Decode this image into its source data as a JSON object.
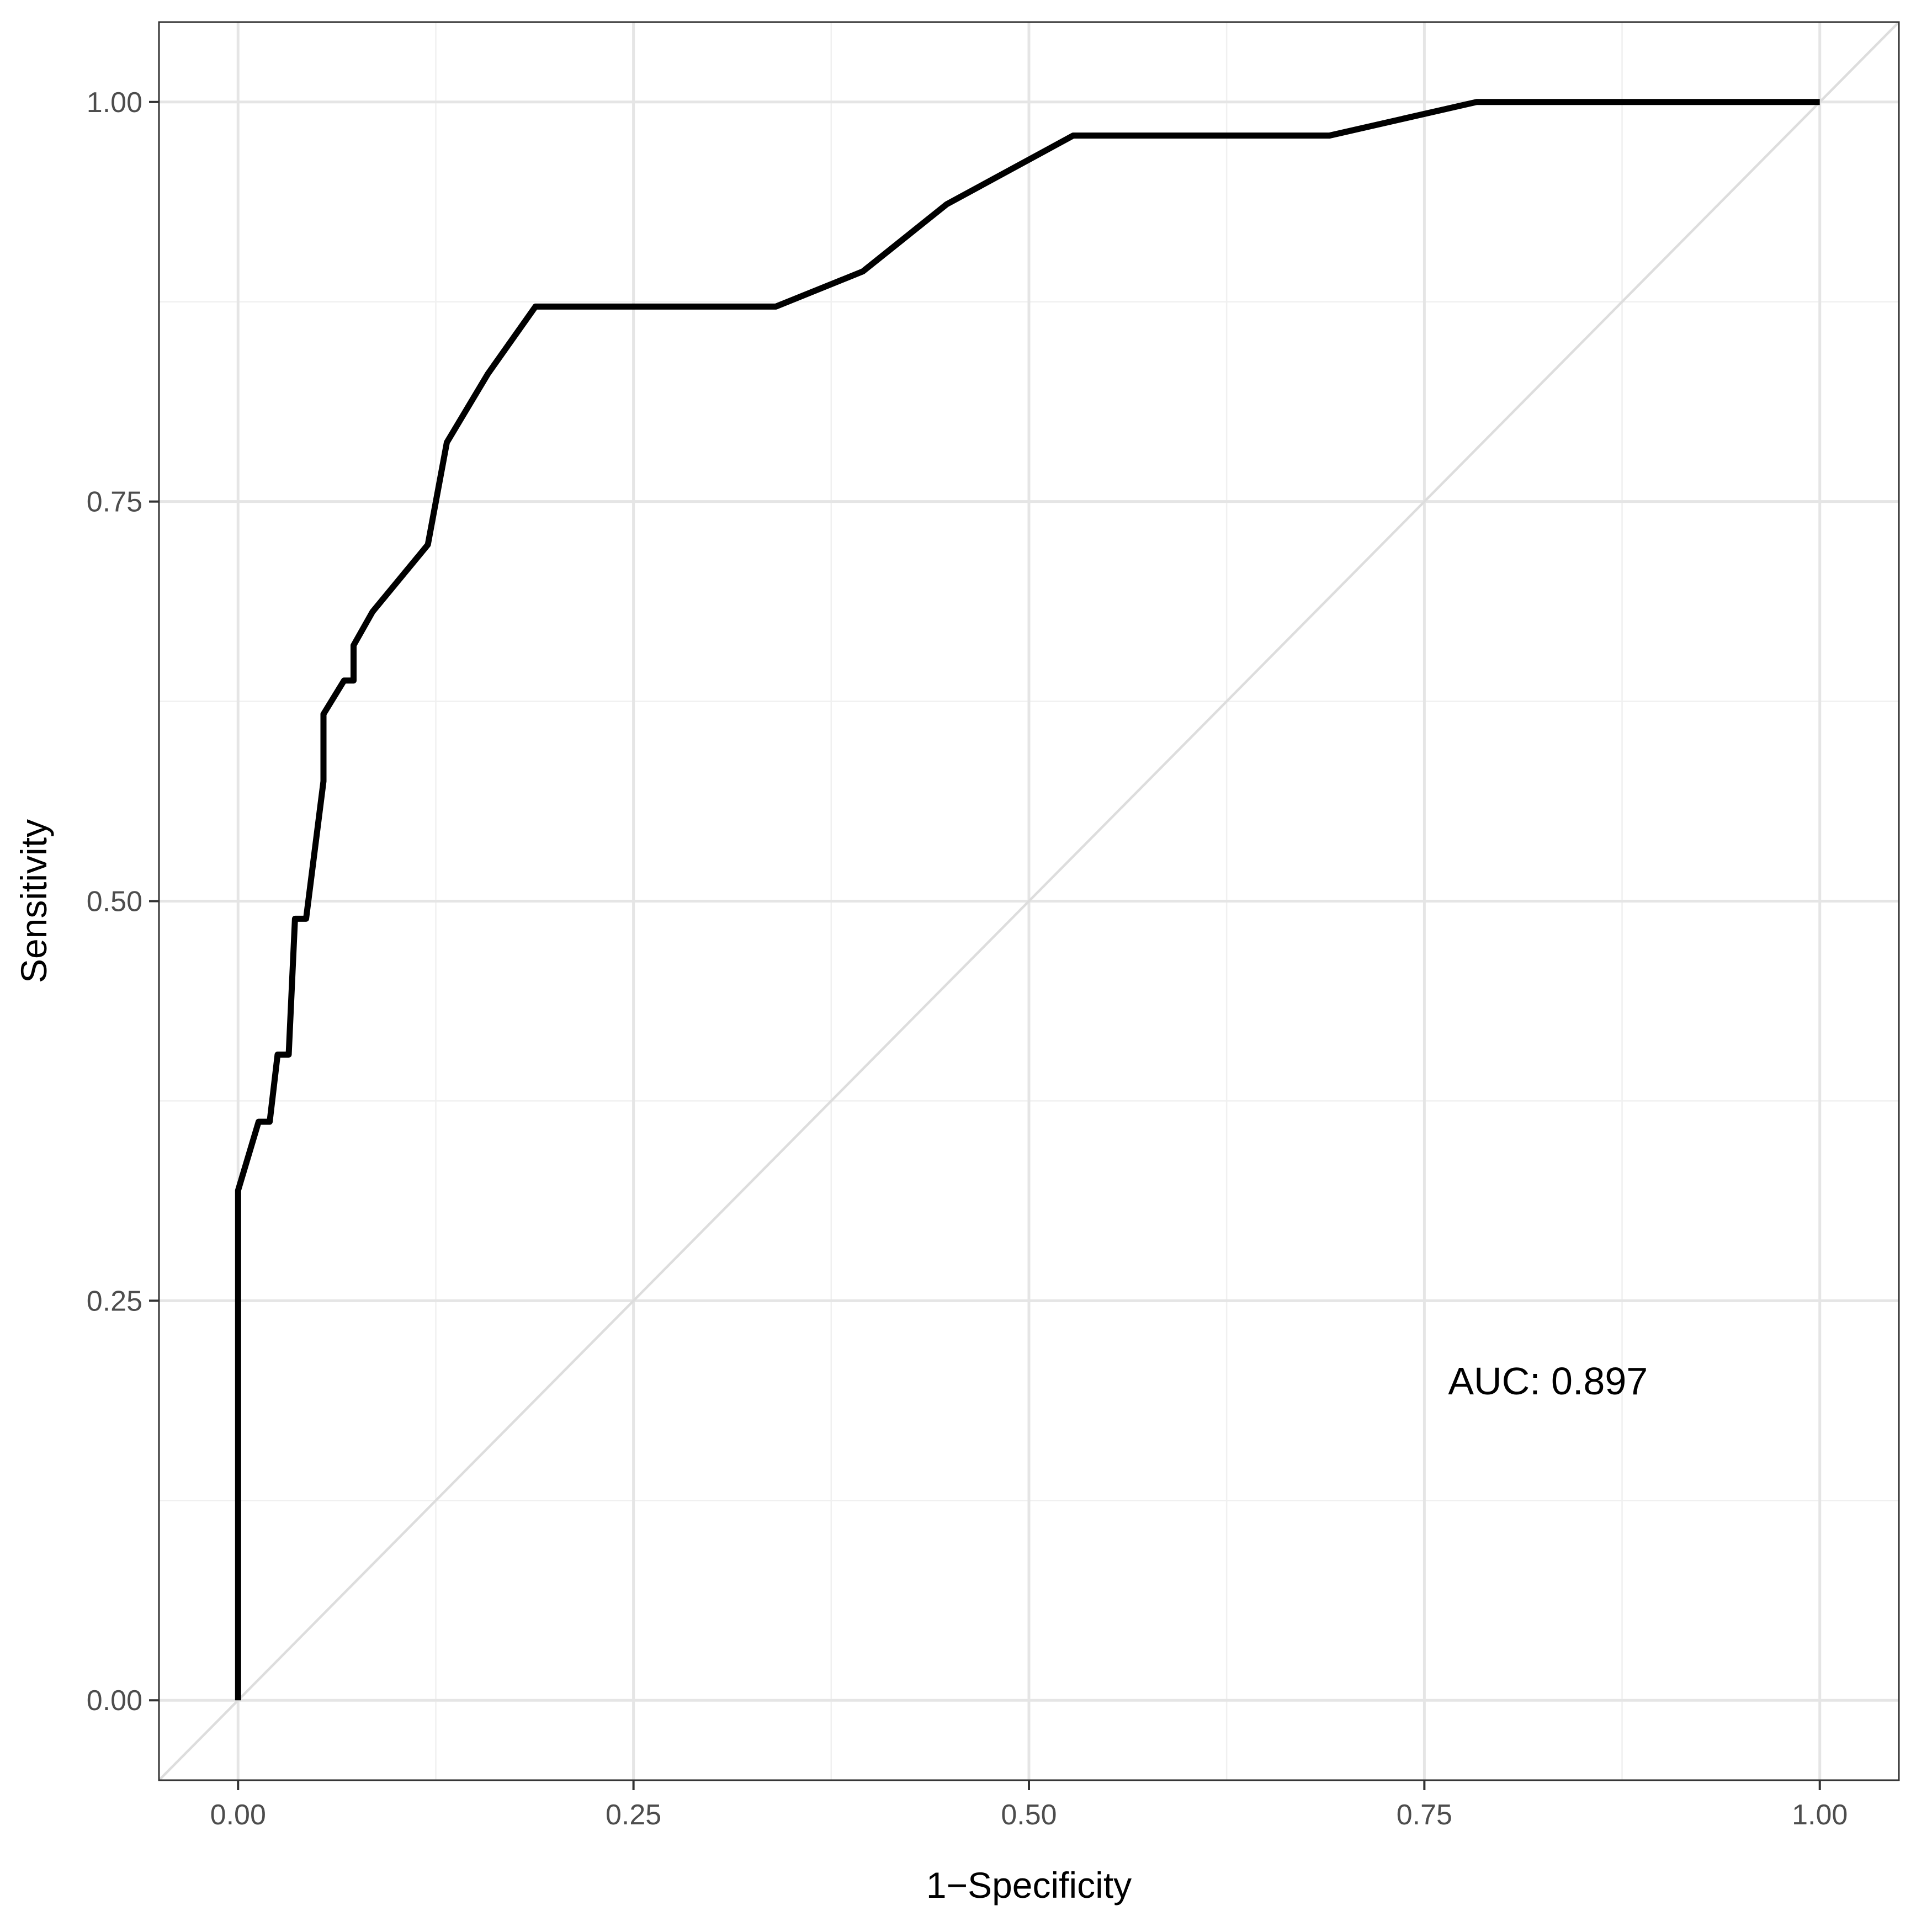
{
  "chart_data": {
    "type": "line",
    "xlabel": "1−Specificity",
    "ylabel": "Sensitivity",
    "xlim": [
      -0.05,
      1.05
    ],
    "ylim": [
      -0.05,
      1.05
    ],
    "x_ticks": [
      0.0,
      0.25,
      0.5,
      0.75,
      1.0
    ],
    "x_tick_labels": [
      "0.00",
      "0.25",
      "0.50",
      "0.75",
      "1.00"
    ],
    "y_ticks": [
      0.0,
      0.25,
      0.5,
      0.75,
      1.0
    ],
    "y_tick_labels": [
      "0.00",
      "0.25",
      "0.50",
      "0.75",
      "1.00"
    ],
    "grid": true,
    "reference_line": {
      "x": [
        -0.05,
        1.05
      ],
      "y": [
        -0.05,
        1.05
      ],
      "color": "#dddddd"
    },
    "series": [
      {
        "color": "#000000",
        "x": [
          0.0,
          0.0,
          0.013,
          0.02,
          0.025,
          0.032,
          0.036,
          0.043,
          0.054,
          0.054,
          0.067,
          0.073,
          0.073,
          0.085,
          0.12,
          0.132,
          0.158,
          0.188,
          0.34,
          0.395,
          0.448,
          0.528,
          0.69,
          0.783,
          1.0
        ],
        "y": [
          0.0,
          0.319,
          0.362,
          0.362,
          0.404,
          0.404,
          0.489,
          0.489,
          0.575,
          0.617,
          0.638,
          0.638,
          0.66,
          0.681,
          0.723,
          0.787,
          0.83,
          0.872,
          0.872,
          0.894,
          0.936,
          0.979,
          0.979,
          1.0,
          1.0
        ]
      }
    ],
    "annotations": [
      {
        "text": "AUC: 0.897",
        "x": 0.765,
        "y": 0.2
      }
    ]
  }
}
